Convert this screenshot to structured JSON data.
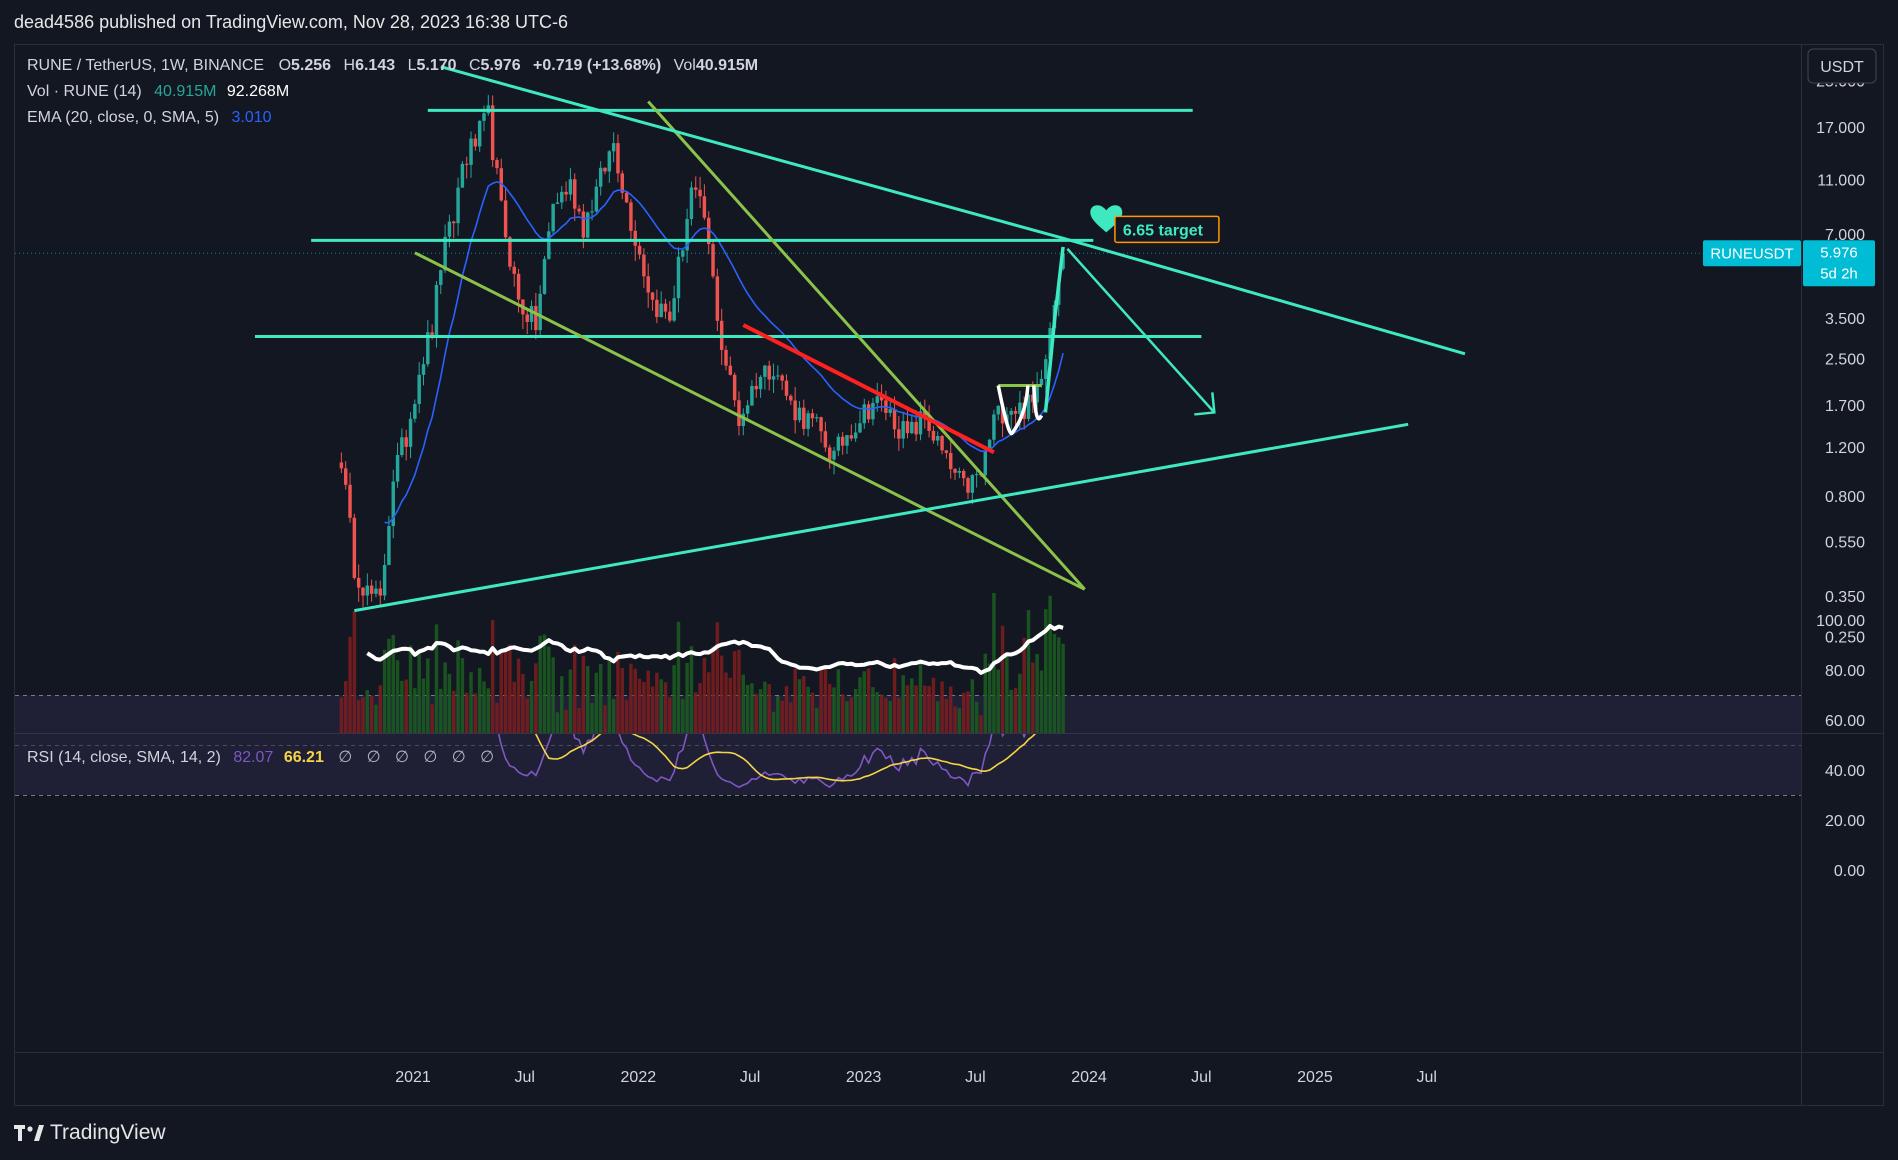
{
  "header": {
    "publisher_text": "dead4586 published on TradingView.com, Nov 28, 2023 16:38 UTC-6"
  },
  "footer": {
    "brand": "TradingView"
  },
  "legend": {
    "symbol": "RUNE / TetherUS, 1W, BINANCE",
    "ohlc": [
      {
        "k": "O",
        "v": "5.256"
      },
      {
        "k": "H",
        "v": "6.143"
      },
      {
        "k": "L",
        "v": "5.170"
      },
      {
        "k": "C",
        "v": "5.976"
      }
    ],
    "change": "+0.719 (+13.68%)",
    "vol_label": "Vol",
    "vol_value": "40.915M",
    "vol_study": "Vol · RUNE (14)",
    "vol_study_v1": "40.915M",
    "vol_study_v2": "92.268M",
    "ema_study": "EMA (20, close, 0, SMA, 5)",
    "ema_value": "3.010",
    "rsi_study": "RSI (14, close, SMA, 14, 2)",
    "rsi_value": "82.07",
    "rsi_ma_value": "66.21",
    "rsi_empty": [
      "∅",
      "∅",
      "∅",
      "∅",
      "∅",
      "∅"
    ]
  },
  "price_axis": {
    "currency_button": "USDT",
    "ticks": [
      "25.000",
      "17.000",
      "11.000",
      "7.000",
      "3.500",
      "2.500",
      "1.700",
      "1.200",
      "0.800",
      "0.550",
      "0.350",
      "0.250"
    ],
    "tick_values": [
      25,
      17,
      11,
      7,
      3.5,
      2.5,
      1.7,
      1.2,
      0.8,
      0.55,
      0.35,
      0.25
    ],
    "scale": "log",
    "range": [
      0.23,
      28
    ]
  },
  "rsi_axis": {
    "ticks": [
      "100.00",
      "80.00",
      "60.00",
      "40.00",
      "20.00",
      "0.00"
    ],
    "tick_values": [
      100,
      80,
      60,
      40,
      20,
      0
    ],
    "band": [
      30,
      70
    ],
    "midline": 50
  },
  "time_axis": {
    "ticks": [
      "2021",
      "Jul",
      "2022",
      "Jul",
      "2023",
      "Jul",
      "2024",
      "Jul",
      "2025",
      "Jul"
    ],
    "tick_dates": [
      "2021-01-01",
      "2021-07-01",
      "2022-01-01",
      "2022-07-01",
      "2023-01-01",
      "2023-07-01",
      "2024-01-01",
      "2024-07-01",
      "2025-01-01",
      "2025-07-01"
    ]
  },
  "last_price": {
    "symbol_badge": "RUNEUSDT",
    "price": "5.976",
    "countdown": "5d 2h",
    "value": 5.976
  },
  "annotations": {
    "target_label": "6.65 target",
    "heart_icon": "heart-icon"
  },
  "colors": {
    "bg": "#131722",
    "up": "#26a69a",
    "down": "#ef5350",
    "cyan_line": "#3ee8c0",
    "olive_line": "#8bc34a",
    "red_line": "#ff2020",
    "ema": "#2962ff",
    "rsi": "#7e57c2",
    "rsi_ma": "#f5d547",
    "badge": "#00bcd4"
  },
  "chart_data": {
    "type": "candlestick",
    "scale": "log",
    "ema_period": 20,
    "rsi_period": 14,
    "anchors": [
      [
        "2020-09-07",
        1.1
      ],
      [
        "2020-09-28",
        0.45
      ],
      [
        "2020-10-19",
        0.36
      ],
      [
        "2020-11-09",
        0.33
      ],
      [
        "2020-11-30",
        0.95
      ],
      [
        "2020-12-21",
        1.3
      ],
      [
        "2021-01-11",
        2.3
      ],
      [
        "2021-02-01",
        3.2
      ],
      [
        "2021-02-15",
        5.5
      ],
      [
        "2021-03-08",
        8.0
      ],
      [
        "2021-03-22",
        12.5
      ],
      [
        "2021-04-12",
        15.0
      ],
      [
        "2021-05-03",
        18.5
      ],
      [
        "2021-05-24",
        8.5
      ],
      [
        "2021-06-21",
        4.0
      ],
      [
        "2021-07-19",
        3.3
      ],
      [
        "2021-08-16",
        9.0
      ],
      [
        "2021-09-13",
        10.5
      ],
      [
        "2021-10-04",
        7.5
      ],
      [
        "2021-11-01",
        11.0
      ],
      [
        "2021-11-22",
        15.0
      ],
      [
        "2021-12-13",
        9.0
      ],
      [
        "2022-01-24",
        4.0
      ],
      [
        "2022-02-21",
        3.5
      ],
      [
        "2022-03-28",
        10.0
      ],
      [
        "2022-04-18",
        8.0
      ],
      [
        "2022-05-16",
        2.8
      ],
      [
        "2022-06-13",
        1.5
      ],
      [
        "2022-07-11",
        2.1
      ],
      [
        "2022-08-08",
        2.4
      ],
      [
        "2022-09-05",
        1.7
      ],
      [
        "2022-10-17",
        1.4
      ],
      [
        "2022-11-14",
        1.1
      ],
      [
        "2022-12-05",
        1.35
      ],
      [
        "2023-01-16",
        1.75
      ],
      [
        "2023-02-06",
        1.65
      ],
      [
        "2023-03-13",
        1.3
      ],
      [
        "2023-04-10",
        1.55
      ],
      [
        "2023-05-15",
        1.05
      ],
      [
        "2023-06-12",
        0.85
      ],
      [
        "2023-07-10",
        0.95
      ],
      [
        "2023-07-31",
        1.5
      ],
      [
        "2023-08-21",
        1.7
      ],
      [
        "2023-09-11",
        1.65
      ],
      [
        "2023-10-02",
        1.7
      ],
      [
        "2023-10-23",
        2.7
      ],
      [
        "2023-11-06",
        4.2
      ],
      [
        "2023-11-20",
        5.98
      ]
    ],
    "ohlc_last": {
      "open": 5.256,
      "high": 6.143,
      "low": 5.17,
      "close": 5.976
    },
    "volume_last": 40915000,
    "volume_ma": 92268000,
    "ema_last": 3.01,
    "rsi_last": 82.07,
    "rsi_ma_last": 66.21,
    "drawings": {
      "horizontal_levels": [
        19.5,
        6.65,
        3.0
      ],
      "target": 6.65,
      "upper_descending_trendline": [
        [
          "2021-02-15",
          28.0
        ],
        [
          "2023-11-27",
          6.7
        ]
      ],
      "upper_descending_trendline_extended": [
        [
          "2023-11-27",
          6.7
        ],
        [
          "2025-09-01",
          2.6
        ]
      ],
      "lower_ascending_trendline": [
        [
          "2020-09-28",
          0.31
        ],
        [
          "2025-06-01",
          1.45
        ]
      ],
      "olive_wedge_upper": [
        [
          "2022-01-17",
          21.0
        ],
        [
          "2023-12-25",
          0.37
        ]
      ],
      "olive_wedge_lower": [
        [
          "2021-01-04",
          6.0
        ],
        [
          "2023-12-25",
          0.37
        ]
      ],
      "red_trendline": [
        [
          "2022-06-20",
          3.3
        ],
        [
          "2023-07-31",
          1.15
        ]
      ],
      "projection_arrow": [
        [
          "2023-11-27",
          6.2
        ],
        [
          "2024-07-22",
          1.6
        ]
      ],
      "cup_shape": [
        [
          "2023-08-07",
          2.0
        ],
        [
          "2023-10-16",
          2.0
        ]
      ]
    }
  }
}
